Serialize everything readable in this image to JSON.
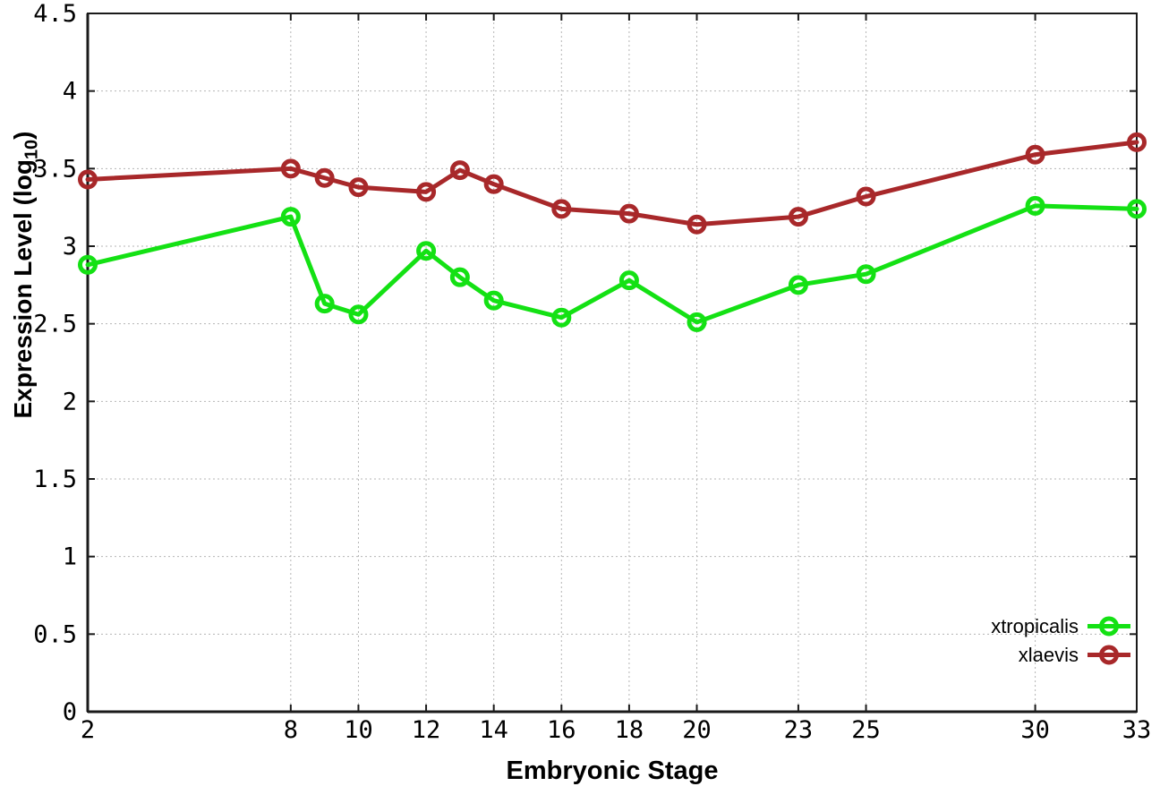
{
  "chart_data": {
    "type": "line",
    "title": "",
    "xlabel": "Embryonic Stage",
    "ylabel": "Expression Level (log10)",
    "ylabel_parts": {
      "base": "Expression Level (log",
      "sub": "10",
      "close": ")"
    },
    "x": [
      2,
      8,
      9,
      10,
      12,
      13,
      14,
      16,
      18,
      20,
      23,
      25,
      30,
      33
    ],
    "series": [
      {
        "name": "xtropicalis",
        "color": "#14e114",
        "values": [
          2.88,
          3.19,
          2.63,
          2.56,
          2.97,
          2.8,
          2.65,
          2.54,
          2.78,
          2.51,
          2.75,
          2.82,
          3.26,
          3.24
        ]
      },
      {
        "name": "xlaevis",
        "color": "#a8282a",
        "values": [
          3.43,
          3.5,
          3.44,
          3.38,
          3.35,
          3.49,
          3.4,
          3.24,
          3.21,
          3.14,
          3.19,
          3.32,
          3.59,
          3.67
        ]
      }
    ],
    "xlim": [
      2,
      33
    ],
    "ylim": [
      0,
      4.5
    ],
    "xticks": [
      2,
      8,
      10,
      12,
      14,
      16,
      18,
      20,
      23,
      25,
      30,
      33
    ],
    "xtick_labels": [
      "2",
      "8",
      "10",
      "12",
      "14",
      "16",
      "18",
      "20",
      "23",
      "25",
      "30",
      "33"
    ],
    "yticks": [
      0,
      0.5,
      1,
      1.5,
      2,
      2.5,
      3,
      3.5,
      4,
      4.5
    ],
    "ytick_labels": [
      "0",
      "0.5",
      "1",
      "1.5",
      "2",
      "2.5",
      "3",
      "3.5",
      "4",
      "4.5"
    ],
    "grid": true,
    "legend_position": "bottom-right",
    "colors": {
      "frame": "#1a1a1a",
      "grid": "#b5b5b5",
      "tick_text": "#000000"
    }
  }
}
